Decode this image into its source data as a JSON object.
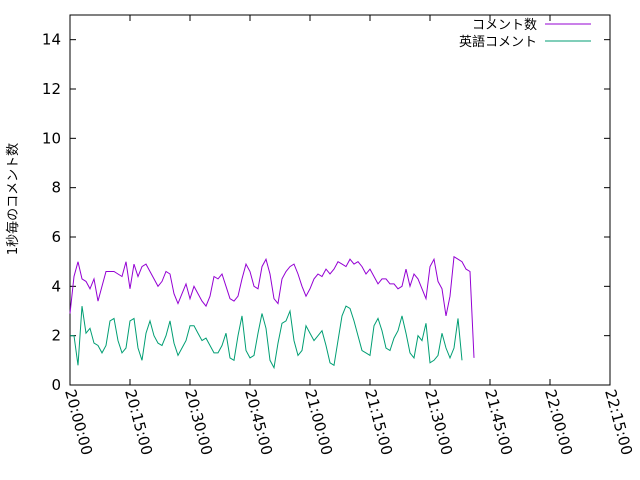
{
  "chart_data": {
    "type": "line",
    "title": "",
    "xlabel": "",
    "ylabel": "1秒毎のコメント数",
    "xlim": [
      "20:00:00",
      "22:15:00"
    ],
    "ylim": [
      0,
      15
    ],
    "x_ticks": [
      "20:00:00",
      "20:15:00",
      "20:30:00",
      "20:45:00",
      "21:00:00",
      "21:15:00",
      "21:30:00",
      "21:45:00",
      "22:00:00",
      "22:15:00"
    ],
    "y_ticks": [
      0,
      2,
      4,
      6,
      8,
      10,
      12,
      14
    ],
    "grid": false,
    "legend_position": "top-right",
    "x_start": "20:00:00",
    "x_step_minutes": 1,
    "series": [
      {
        "name": "コメント数",
        "color": "#9400d3",
        "values": [
          2.9,
          4.4,
          5.0,
          4.3,
          4.2,
          3.9,
          4.3,
          3.4,
          4.0,
          4.6,
          4.6,
          4.6,
          4.5,
          4.4,
          5.0,
          3.9,
          4.9,
          4.4,
          4.8,
          4.9,
          4.6,
          4.3,
          4.0,
          4.2,
          4.6,
          4.5,
          3.7,
          3.3,
          3.7,
          4.1,
          3.5,
          4.0,
          3.7,
          3.4,
          3.2,
          3.6,
          4.4,
          4.3,
          4.5,
          4.0,
          3.5,
          3.4,
          3.6,
          4.3,
          4.9,
          4.6,
          4.0,
          3.9,
          4.8,
          5.1,
          4.5,
          3.5,
          3.3,
          4.3,
          4.6,
          4.8,
          4.9,
          4.5,
          4.0,
          3.6,
          3.9,
          4.3,
          4.5,
          4.4,
          4.7,
          4.5,
          4.7,
          5.0,
          4.9,
          4.8,
          5.1,
          4.9,
          5.0,
          4.8,
          4.5,
          4.7,
          4.4,
          4.1,
          4.3,
          4.3,
          4.1,
          4.1,
          3.9,
          4.0,
          4.7,
          4.0,
          4.5,
          4.3,
          3.9,
          3.5,
          4.8,
          5.1,
          4.2,
          3.9,
          2.8,
          3.6,
          5.2,
          5.1,
          5.0,
          4.7,
          4.6,
          1.1
        ]
      },
      {
        "name": "英語コメント",
        "color": "#009e73",
        "values": [
          2.0,
          2.0,
          0.8,
          3.2,
          2.1,
          2.3,
          1.7,
          1.6,
          1.3,
          1.6,
          2.6,
          2.7,
          1.8,
          1.3,
          1.5,
          2.6,
          2.7,
          1.5,
          1.0,
          2.1,
          2.6,
          2.0,
          1.7,
          1.6,
          2.0,
          2.6,
          1.7,
          1.2,
          1.5,
          1.8,
          2.4,
          2.4,
          2.1,
          1.8,
          1.9,
          1.6,
          1.3,
          1.3,
          1.6,
          2.1,
          1.1,
          1.0,
          2.0,
          2.8,
          1.4,
          1.1,
          1.2,
          2.1,
          2.9,
          2.3,
          1.0,
          0.7,
          1.7,
          2.5,
          2.6,
          3.0,
          1.8,
          1.2,
          1.4,
          2.4,
          2.1,
          1.8,
          2.0,
          2.2,
          1.6,
          0.9,
          0.8,
          1.8,
          2.8,
          3.2,
          3.1,
          2.6,
          2.0,
          1.4,
          1.3,
          1.2,
          2.4,
          2.7,
          2.2,
          1.5,
          1.4,
          1.9,
          2.2,
          2.8,
          2.1,
          1.3,
          1.1,
          2.0,
          1.8,
          2.5,
          0.9,
          1.0,
          1.2,
          2.1,
          1.5,
          1.1,
          1.5,
          2.7,
          1.0
        ]
      }
    ]
  }
}
